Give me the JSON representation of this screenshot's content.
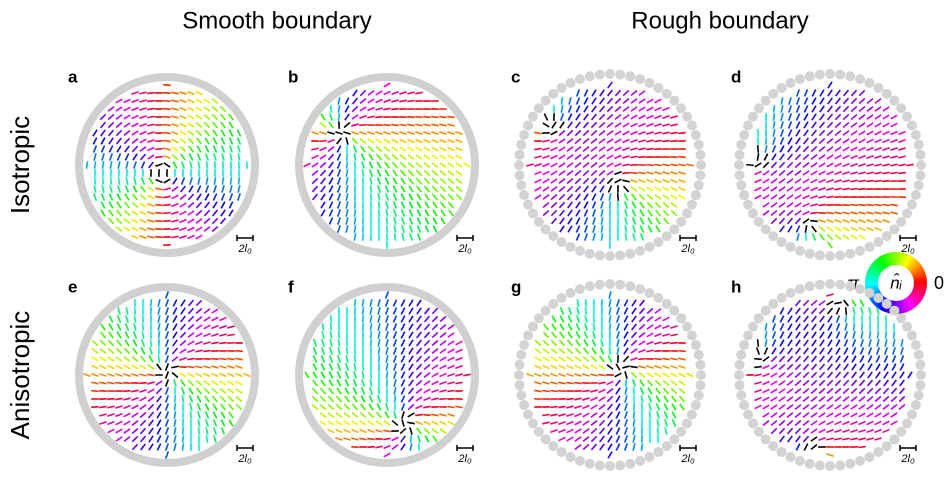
{
  "columns": [
    {
      "title": "Smooth boundary"
    },
    {
      "title": "Rough boundary"
    }
  ],
  "rows": [
    "Isotropic",
    "Anisotropic"
  ],
  "panels": [
    {
      "label": "a",
      "scale_bar": "2l₀"
    },
    {
      "label": "b",
      "scale_bar": "2l₀"
    },
    {
      "label": "c",
      "scale_bar": "2l₀"
    },
    {
      "label": "d",
      "scale_bar": "2l₀"
    },
    {
      "label": "e",
      "scale_bar": "2l₀"
    },
    {
      "label": "f",
      "scale_bar": "2l₀"
    },
    {
      "label": "g",
      "scale_bar": "2l₀"
    },
    {
      "label": "h",
      "scale_bar": "2l₀"
    }
  ],
  "color_wheel": {
    "left": "π",
    "center": "n̂ᵢ",
    "right": "0"
  }
}
